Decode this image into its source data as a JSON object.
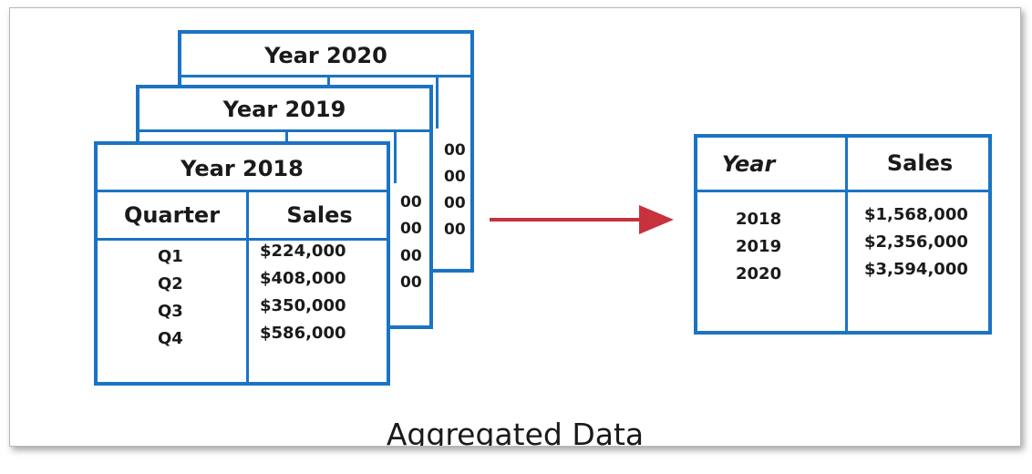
{
  "tables_stack": [
    {
      "title": "Year 2020",
      "visible_fragments": [
        "00",
        "00",
        "00",
        "00"
      ]
    },
    {
      "title": "Year 2019",
      "visible_fragments": [
        "00",
        "00",
        "00",
        "00"
      ]
    },
    {
      "title": "Year 2018",
      "columns": [
        "Quarter",
        "Sales"
      ],
      "rows": [
        {
          "quarter": "Q1",
          "sales": "$224,000"
        },
        {
          "quarter": "Q2",
          "sales": "$408,000"
        },
        {
          "quarter": "Q3",
          "sales": "$350,000"
        },
        {
          "quarter": "Q4",
          "sales": "$586,000"
        }
      ]
    }
  ],
  "result_table": {
    "columns": [
      "Year",
      "Sales"
    ],
    "rows": [
      {
        "year": "2018",
        "sales": "$1,568,000"
      },
      {
        "year": "2019",
        "sales": "$2,356,000"
      },
      {
        "year": "2020",
        "sales": "$3,594,000"
      }
    ]
  },
  "caption": "Aggregated Data",
  "colors": {
    "table_border": "#1b73c4",
    "arrow": "#c8323c"
  }
}
